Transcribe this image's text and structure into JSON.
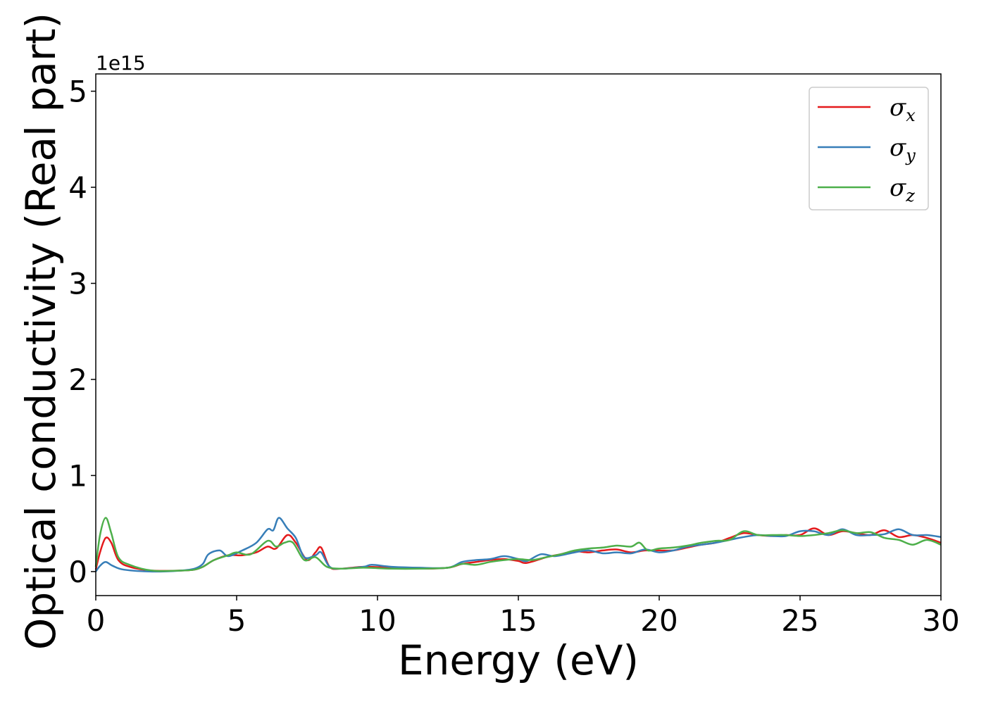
{
  "chart_data": {
    "type": "line",
    "title": "",
    "xlabel": "Energy (eV)",
    "ylabel": "Optical conductivity (Real part)",
    "y_offset_label": "1e15",
    "xlim": [
      0,
      30
    ],
    "ylim": [
      -0.25,
      5.18
    ],
    "x_ticks": [
      0,
      5,
      10,
      15,
      20,
      25,
      30
    ],
    "y_ticks": [
      0,
      1,
      2,
      3,
      4,
      5
    ],
    "grid": false,
    "legend_position": "top-right",
    "series": [
      {
        "name": "σx",
        "legend_base": "σ",
        "legend_sub": "x",
        "color": "#e41a1c",
        "points": [
          [
            0,
            0.02
          ],
          [
            0.15,
            0.2
          ],
          [
            0.35,
            0.35
          ],
          [
            0.55,
            0.3
          ],
          [
            0.8,
            0.12
          ],
          [
            1.2,
            0.05
          ],
          [
            2,
            0.01
          ],
          [
            3,
            0.01
          ],
          [
            3.5,
            0.02
          ],
          [
            3.8,
            0.05
          ],
          [
            4.2,
            0.12
          ],
          [
            4.7,
            0.17
          ],
          [
            5.2,
            0.17
          ],
          [
            5.7,
            0.2
          ],
          [
            6.1,
            0.26
          ],
          [
            6.4,
            0.24
          ],
          [
            6.8,
            0.38
          ],
          [
            7.1,
            0.3
          ],
          [
            7.5,
            0.12
          ],
          [
            7.8,
            0.2
          ],
          [
            8.0,
            0.25
          ],
          [
            8.3,
            0.05
          ],
          [
            8.7,
            0.03
          ],
          [
            9.5,
            0.05
          ],
          [
            10.5,
            0.04
          ],
          [
            11.5,
            0.03
          ],
          [
            12.5,
            0.04
          ],
          [
            13.0,
            0.08
          ],
          [
            13.5,
            0.1
          ],
          [
            14.0,
            0.12
          ],
          [
            14.5,
            0.13
          ],
          [
            15.0,
            0.11
          ],
          [
            15.3,
            0.09
          ],
          [
            16.0,
            0.15
          ],
          [
            16.5,
            0.18
          ],
          [
            17.0,
            0.21
          ],
          [
            17.5,
            0.2
          ],
          [
            18.0,
            0.22
          ],
          [
            18.5,
            0.23
          ],
          [
            19.0,
            0.2
          ],
          [
            19.5,
            0.22
          ],
          [
            20.0,
            0.22
          ],
          [
            20.5,
            0.22
          ],
          [
            21.0,
            0.25
          ],
          [
            21.5,
            0.28
          ],
          [
            22.0,
            0.3
          ],
          [
            22.5,
            0.35
          ],
          [
            23.0,
            0.4
          ],
          [
            23.5,
            0.38
          ],
          [
            24.0,
            0.37
          ],
          [
            24.5,
            0.38
          ],
          [
            25.0,
            0.38
          ],
          [
            25.5,
            0.45
          ],
          [
            26.0,
            0.38
          ],
          [
            26.5,
            0.42
          ],
          [
            27.0,
            0.4
          ],
          [
            27.5,
            0.38
          ],
          [
            28.0,
            0.43
          ],
          [
            28.5,
            0.36
          ],
          [
            29.0,
            0.38
          ],
          [
            29.5,
            0.35
          ],
          [
            30.0,
            0.3
          ]
        ]
      },
      {
        "name": "σy",
        "legend_base": "σ",
        "legend_sub": "y",
        "color": "#377eb8",
        "points": [
          [
            0,
            0.0
          ],
          [
            0.15,
            0.06
          ],
          [
            0.35,
            0.1
          ],
          [
            0.6,
            0.06
          ],
          [
            1.0,
            0.02
          ],
          [
            2,
            0.0
          ],
          [
            3,
            0.01
          ],
          [
            3.5,
            0.03
          ],
          [
            3.8,
            0.08
          ],
          [
            4.0,
            0.18
          ],
          [
            4.4,
            0.22
          ],
          [
            4.7,
            0.16
          ],
          [
            5.2,
            0.22
          ],
          [
            5.7,
            0.3
          ],
          [
            6.1,
            0.44
          ],
          [
            6.3,
            0.43
          ],
          [
            6.5,
            0.56
          ],
          [
            6.8,
            0.45
          ],
          [
            7.1,
            0.35
          ],
          [
            7.4,
            0.15
          ],
          [
            7.8,
            0.17
          ],
          [
            8.0,
            0.2
          ],
          [
            8.3,
            0.05
          ],
          [
            8.7,
            0.03
          ],
          [
            9.5,
            0.05
          ],
          [
            9.8,
            0.07
          ],
          [
            10.5,
            0.05
          ],
          [
            11.5,
            0.04
          ],
          [
            12.5,
            0.04
          ],
          [
            13.0,
            0.1
          ],
          [
            13.5,
            0.12
          ],
          [
            14.0,
            0.13
          ],
          [
            14.5,
            0.16
          ],
          [
            15.0,
            0.13
          ],
          [
            15.3,
            0.11
          ],
          [
            15.8,
            0.18
          ],
          [
            16.3,
            0.16
          ],
          [
            17.0,
            0.2
          ],
          [
            17.5,
            0.22
          ],
          [
            18.0,
            0.19
          ],
          [
            18.5,
            0.2
          ],
          [
            19.0,
            0.19
          ],
          [
            19.5,
            0.23
          ],
          [
            20.0,
            0.2
          ],
          [
            20.5,
            0.22
          ],
          [
            21.0,
            0.26
          ],
          [
            21.5,
            0.28
          ],
          [
            22.0,
            0.3
          ],
          [
            22.5,
            0.33
          ],
          [
            23.0,
            0.36
          ],
          [
            23.5,
            0.38
          ],
          [
            24.0,
            0.37
          ],
          [
            24.5,
            0.37
          ],
          [
            25.0,
            0.42
          ],
          [
            25.5,
            0.42
          ],
          [
            26.0,
            0.38
          ],
          [
            26.5,
            0.44
          ],
          [
            27.0,
            0.38
          ],
          [
            27.5,
            0.38
          ],
          [
            28.0,
            0.39
          ],
          [
            28.5,
            0.44
          ],
          [
            29.0,
            0.38
          ],
          [
            29.5,
            0.38
          ],
          [
            30.0,
            0.36
          ]
        ]
      },
      {
        "name": "σz",
        "legend_base": "σ",
        "legend_sub": "z",
        "color": "#4daf4a",
        "points": [
          [
            0,
            0.05
          ],
          [
            0.15,
            0.38
          ],
          [
            0.35,
            0.56
          ],
          [
            0.55,
            0.4
          ],
          [
            0.8,
            0.15
          ],
          [
            1.2,
            0.07
          ],
          [
            2,
            0.01
          ],
          [
            3,
            0.01
          ],
          [
            3.5,
            0.02
          ],
          [
            3.8,
            0.05
          ],
          [
            4.2,
            0.12
          ],
          [
            4.7,
            0.17
          ],
          [
            5.0,
            0.2
          ],
          [
            5.5,
            0.18
          ],
          [
            6.1,
            0.32
          ],
          [
            6.4,
            0.26
          ],
          [
            6.7,
            0.3
          ],
          [
            7.0,
            0.3
          ],
          [
            7.4,
            0.12
          ],
          [
            7.8,
            0.15
          ],
          [
            8.2,
            0.05
          ],
          [
            8.7,
            0.03
          ],
          [
            9.5,
            0.04
          ],
          [
            10.5,
            0.03
          ],
          [
            11.5,
            0.03
          ],
          [
            12.5,
            0.04
          ],
          [
            13.0,
            0.08
          ],
          [
            13.5,
            0.07
          ],
          [
            14.0,
            0.1
          ],
          [
            14.5,
            0.12
          ],
          [
            15.0,
            0.13
          ],
          [
            15.5,
            0.12
          ],
          [
            16.0,
            0.15
          ],
          [
            16.5,
            0.18
          ],
          [
            17.0,
            0.22
          ],
          [
            17.5,
            0.24
          ],
          [
            18.0,
            0.25
          ],
          [
            18.5,
            0.27
          ],
          [
            19.0,
            0.26
          ],
          [
            19.3,
            0.3
          ],
          [
            19.6,
            0.22
          ],
          [
            20.0,
            0.24
          ],
          [
            20.5,
            0.25
          ],
          [
            21.0,
            0.27
          ],
          [
            21.5,
            0.3
          ],
          [
            22.0,
            0.32
          ],
          [
            22.5,
            0.33
          ],
          [
            23.0,
            0.42
          ],
          [
            23.5,
            0.38
          ],
          [
            24.0,
            0.38
          ],
          [
            24.5,
            0.38
          ],
          [
            25.0,
            0.37
          ],
          [
            25.5,
            0.38
          ],
          [
            26.0,
            0.4
          ],
          [
            26.5,
            0.43
          ],
          [
            27.0,
            0.4
          ],
          [
            27.5,
            0.41
          ],
          [
            28.0,
            0.35
          ],
          [
            28.5,
            0.33
          ],
          [
            29.0,
            0.28
          ],
          [
            29.5,
            0.33
          ],
          [
            30.0,
            0.28
          ]
        ]
      }
    ]
  }
}
